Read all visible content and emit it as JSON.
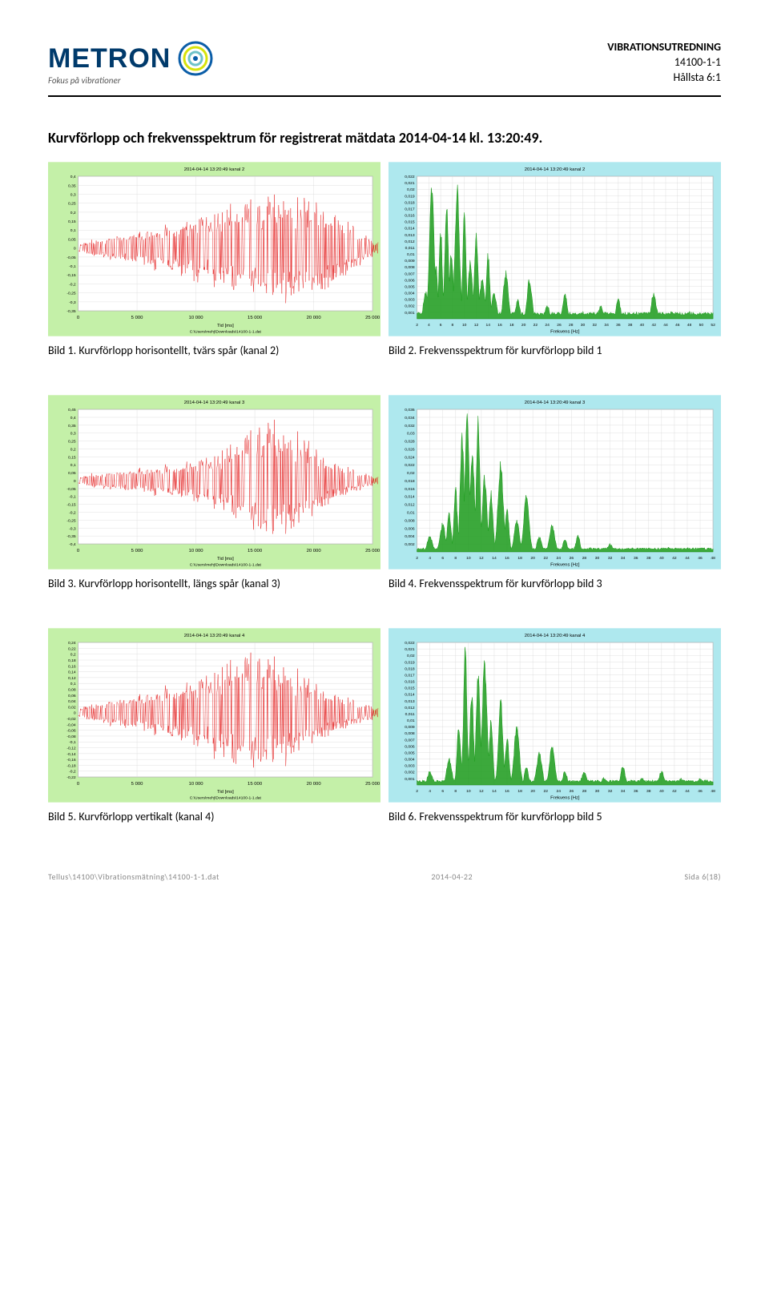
{
  "header": {
    "logo_text": "METRON",
    "logo_tag": "Fokus på vibrationer",
    "doc_title": "VIBRATIONSUTREDNING",
    "doc_code": "14100-1-1",
    "doc_ref": "Hållsta 6:1"
  },
  "section": {
    "title": "Kurvförlopp och frekvensspektrum för registrerat mätdata 2014-04-14 kl. 13:20:49."
  },
  "charts": [
    {
      "wave": {
        "title": "2014-04-14  13:20:49  kanal 2",
        "bg": "#c4f0a8",
        "plot_bg": "#ffffff",
        "grid": "#d8d8d8",
        "border": "#888888",
        "line_color": "#e00000",
        "xlabel": "Tid [ms]",
        "filepath": "C:\\Users\\mehj\\Downloads\\14100-1-1.dat",
        "xlim": [
          0,
          25000
        ],
        "xtick_step": 5000,
        "ylim": [
          -0.35,
          0.4
        ],
        "yticks": [
          -0.35,
          -0.3,
          -0.25,
          -0.2,
          -0.15,
          -0.1,
          -0.05,
          0,
          0.05,
          0.1,
          0.15,
          0.2,
          0.25,
          0.3,
          0.35,
          0.4
        ],
        "envelope": [
          0.03,
          0.04,
          0.05,
          0.06,
          0.06,
          0.07,
          0.09,
          0.08,
          0.09,
          0.11,
          0.1,
          0.12,
          0.13,
          0.12,
          0.14,
          0.15,
          0.15,
          0.18,
          0.17,
          0.2,
          0.21,
          0.19,
          0.22,
          0.25,
          0.23,
          0.26,
          0.24,
          0.27,
          0.29,
          0.3,
          0.28,
          0.33,
          0.31,
          0.35,
          0.32,
          0.34,
          0.3,
          0.33,
          0.29,
          0.31,
          0.28,
          0.25,
          0.24,
          0.2,
          0.17,
          0.14,
          0.11,
          0.08,
          0.06,
          0.04
        ],
        "density": 11,
        "font_size": 6
      },
      "spec": {
        "title": "2014-04-14  13:20:49  kanal 2",
        "bg": "#aee8ee",
        "plot_bg": "#ffffff",
        "grid": "#d8d8d8",
        "border": "#888888",
        "line_color": "#1a9a1a",
        "fill_color": "#1a9a1a",
        "xlabel": "Frekvens [Hz]",
        "xlim": [
          2,
          52
        ],
        "xtick_step": 2,
        "ylim": [
          0,
          0.022
        ],
        "yticks": [
          0.001,
          0.002,
          0.003,
          0.004,
          0.005,
          0.006,
          0.007,
          0.008,
          0.009,
          0.01,
          0.011,
          0.012,
          0.013,
          0.014,
          0.015,
          0.016,
          0.017,
          0.018,
          0.019,
          0.02,
          0.021,
          0.022
        ],
        "peaks": [
          {
            "x": 3.5,
            "h": 0.004
          },
          {
            "x": 4.5,
            "h": 0.021
          },
          {
            "x": 5.2,
            "h": 0.008
          },
          {
            "x": 6,
            "h": 0.014
          },
          {
            "x": 7,
            "h": 0.018
          },
          {
            "x": 7.8,
            "h": 0.01
          },
          {
            "x": 8.8,
            "h": 0.02
          },
          {
            "x": 10,
            "h": 0.016
          },
          {
            "x": 11,
            "h": 0.009
          },
          {
            "x": 12,
            "h": 0.013
          },
          {
            "x": 13,
            "h": 0.006
          },
          {
            "x": 14,
            "h": 0.01
          },
          {
            "x": 15,
            "h": 0.004
          },
          {
            "x": 17,
            "h": 0.007
          },
          {
            "x": 19,
            "h": 0.003
          },
          {
            "x": 21,
            "h": 0.006
          },
          {
            "x": 24,
            "h": 0.002
          },
          {
            "x": 27,
            "h": 0.004
          },
          {
            "x": 30,
            "h": 0.001
          },
          {
            "x": 33,
            "h": 0.002
          },
          {
            "x": 36,
            "h": 0.003
          },
          {
            "x": 39,
            "h": 0.001
          },
          {
            "x": 42,
            "h": 0.004
          },
          {
            "x": 45,
            "h": 0.001
          },
          {
            "x": 48,
            "h": 0.001
          }
        ],
        "baseline_noise": 0.0008,
        "font_size": 6
      },
      "caption_left": "Bild 1. Kurvförlopp horisontellt, tvärs spår (kanal 2)",
      "caption_right": "Bild 2. Frekvensspektrum för kurvförlopp bild 1"
    },
    {
      "wave": {
        "title": "2014-04-14  13:20:49  kanal 3",
        "bg": "#c4f0a8",
        "plot_bg": "#ffffff",
        "grid": "#d8d8d8",
        "border": "#888888",
        "line_color": "#e00000",
        "xlabel": "Tid [ms]",
        "filepath": "C:\\Users\\mehj\\Downloads\\14100-1-1.dat",
        "xlim": [
          0,
          25000
        ],
        "xtick_step": 5000,
        "ylim": [
          -0.4,
          0.45
        ],
        "yticks": [
          -0.4,
          -0.35,
          -0.3,
          -0.25,
          -0.2,
          -0.15,
          -0.1,
          -0.05,
          0,
          0.05,
          0.1,
          0.15,
          0.2,
          0.25,
          0.3,
          0.35,
          0.4,
          0.45
        ],
        "envelope": [
          0.03,
          0.04,
          0.05,
          0.05,
          0.06,
          0.06,
          0.07,
          0.07,
          0.08,
          0.08,
          0.09,
          0.09,
          0.1,
          0.1,
          0.11,
          0.11,
          0.12,
          0.12,
          0.14,
          0.14,
          0.16,
          0.16,
          0.18,
          0.2,
          0.22,
          0.24,
          0.27,
          0.3,
          0.34,
          0.38,
          0.4,
          0.42,
          0.4,
          0.38,
          0.35,
          0.39,
          0.33,
          0.3,
          0.28,
          0.24,
          0.2,
          0.17,
          0.14,
          0.12,
          0.1,
          0.08,
          0.07,
          0.05,
          0.04,
          0.03
        ],
        "density": 11,
        "font_size": 6
      },
      "spec": {
        "title": "2014-04-14  13:20:49  kanal 3",
        "bg": "#aee8ee",
        "plot_bg": "#ffffff",
        "grid": "#d8d8d8",
        "border": "#888888",
        "line_color": "#1a9a1a",
        "fill_color": "#1a9a1a",
        "xlabel": "Frekvens [Hz]",
        "xlim": [
          2,
          48
        ],
        "xtick_step": 2,
        "ylim": [
          0,
          0.036
        ],
        "yticks": [
          0.002,
          0.004,
          0.006,
          0.008,
          0.01,
          0.012,
          0.014,
          0.016,
          0.018,
          0.02,
          0.022,
          0.024,
          0.026,
          0.028,
          0.03,
          0.032,
          0.034,
          0.036
        ],
        "peaks": [
          {
            "x": 4,
            "h": 0.004
          },
          {
            "x": 6,
            "h": 0.007
          },
          {
            "x": 7,
            "h": 0.01
          },
          {
            "x": 8,
            "h": 0.016
          },
          {
            "x": 9,
            "h": 0.03
          },
          {
            "x": 9.8,
            "h": 0.035
          },
          {
            "x": 10.6,
            "h": 0.024
          },
          {
            "x": 11.5,
            "h": 0.033
          },
          {
            "x": 12.5,
            "h": 0.019
          },
          {
            "x": 13.5,
            "h": 0.015
          },
          {
            "x": 15,
            "h": 0.022
          },
          {
            "x": 16,
            "h": 0.011
          },
          {
            "x": 17.5,
            "h": 0.008
          },
          {
            "x": 19,
            "h": 0.014
          },
          {
            "x": 21,
            "h": 0.004
          },
          {
            "x": 23,
            "h": 0.007
          },
          {
            "x": 25,
            "h": 0.003
          },
          {
            "x": 27,
            "h": 0.004
          },
          {
            "x": 29,
            "h": 0.001
          },
          {
            "x": 32,
            "h": 0.002
          },
          {
            "x": 35,
            "h": 0.001
          },
          {
            "x": 38,
            "h": 0.001
          },
          {
            "x": 41,
            "h": 0.001
          },
          {
            "x": 44,
            "h": 0.001
          }
        ],
        "baseline_noise": 0.0008,
        "font_size": 6
      },
      "caption_left": "Bild 3. Kurvförlopp horisontellt, längs spår (kanal 3)",
      "caption_right": "Bild 4. Frekvensspektrum för kurvförlopp bild 3"
    },
    {
      "wave": {
        "title": "2014-04-14  13:20:49  kanal 4",
        "bg": "#c4f0a8",
        "plot_bg": "#ffffff",
        "grid": "#d8d8d8",
        "border": "#888888",
        "line_color": "#e00000",
        "xlabel": "Tid [ms]",
        "filepath": "C:\\Users\\mehj\\Downloads\\14100-1-1.dat",
        "xlim": [
          0,
          25000
        ],
        "xtick_step": 5000,
        "ylim": [
          -0.22,
          0.24
        ],
        "yticks": [
          -0.22,
          -0.2,
          -0.18,
          -0.16,
          -0.14,
          -0.12,
          -0.1,
          -0.08,
          -0.06,
          -0.04,
          -0.02,
          0,
          0.02,
          0.04,
          0.06,
          0.08,
          0.1,
          0.12,
          0.14,
          0.16,
          0.18,
          0.2,
          0.22,
          0.24
        ],
        "envelope": [
          0.02,
          0.03,
          0.03,
          0.04,
          0.04,
          0.05,
          0.05,
          0.06,
          0.06,
          0.07,
          0.07,
          0.08,
          0.08,
          0.09,
          0.1,
          0.1,
          0.11,
          0.11,
          0.12,
          0.12,
          0.14,
          0.14,
          0.16,
          0.17,
          0.18,
          0.19,
          0.2,
          0.21,
          0.22,
          0.23,
          0.22,
          0.21,
          0.2,
          0.19,
          0.19,
          0.18,
          0.16,
          0.14,
          0.13,
          0.12,
          0.1,
          0.09,
          0.08,
          0.07,
          0.06,
          0.05,
          0.04,
          0.03,
          0.03,
          0.02
        ],
        "density": 11,
        "font_size": 6
      },
      "spec": {
        "title": "2014-04-14  13:20:49  kanal 4",
        "bg": "#aee8ee",
        "plot_bg": "#ffffff",
        "grid": "#d8d8d8",
        "border": "#888888",
        "line_color": "#1a9a1a",
        "fill_color": "#1a9a1a",
        "xlabel": "Frekvens [Hz]",
        "xlim": [
          2,
          48
        ],
        "xtick_step": 2,
        "ylim": [
          0,
          0.022
        ],
        "yticks": [
          0.001,
          0.002,
          0.003,
          0.004,
          0.005,
          0.006,
          0.007,
          0.008,
          0.009,
          0.01,
          0.011,
          0.012,
          0.013,
          0.014,
          0.015,
          0.016,
          0.017,
          0.018,
          0.019,
          0.02,
          0.021,
          0.022
        ],
        "peaks": [
          {
            "x": 4,
            "h": 0.002
          },
          {
            "x": 7,
            "h": 0.004
          },
          {
            "x": 8.5,
            "h": 0.009
          },
          {
            "x": 9.5,
            "h": 0.021
          },
          {
            "x": 10.5,
            "h": 0.014
          },
          {
            "x": 11.5,
            "h": 0.017
          },
          {
            "x": 12.5,
            "h": 0.019
          },
          {
            "x": 13.5,
            "h": 0.01
          },
          {
            "x": 15,
            "h": 0.013
          },
          {
            "x": 16,
            "h": 0.007
          },
          {
            "x": 17.5,
            "h": 0.009
          },
          {
            "x": 19,
            "h": 0.003
          },
          {
            "x": 21,
            "h": 0.005
          },
          {
            "x": 23,
            "h": 0.006
          },
          {
            "x": 25,
            "h": 0.002
          },
          {
            "x": 28,
            "h": 0.002
          },
          {
            "x": 31,
            "h": 0.001
          },
          {
            "x": 34,
            "h": 0.003
          },
          {
            "x": 37,
            "h": 0.001
          },
          {
            "x": 40,
            "h": 0.002
          },
          {
            "x": 43,
            "h": 0.001
          },
          {
            "x": 46,
            "h": 0.001
          }
        ],
        "baseline_noise": 0.0006,
        "font_size": 6
      },
      "caption_left": "Bild 5. Kurvförlopp vertikalt (kanal 4)",
      "caption_right": "Bild 6. Frekvensspektrum för kurvförlopp bild 5"
    }
  ],
  "footer": {
    "left": "Tellus\\14100\\Vibrationsmätning\\14100-1-1.dat",
    "center": "2014-04-22",
    "right": "Sida 6(18)"
  }
}
